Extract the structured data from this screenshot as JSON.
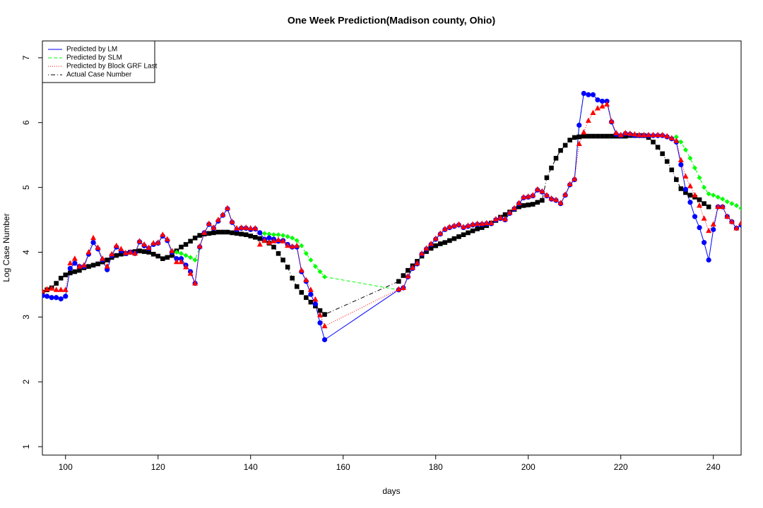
{
  "chart_data": {
    "type": "line",
    "title": "One Week Prediction(Madison county, Ohio)",
    "x_label": "days",
    "y_label": "Log Case Number",
    "xlim": [
      95,
      246
    ],
    "ylim": [
      0.87,
      7.26
    ],
    "xticks": [
      100,
      120,
      140,
      160,
      180,
      200,
      220,
      240
    ],
    "yticks": [
      1,
      2,
      3,
      4,
      5,
      6,
      7
    ],
    "grid": false,
    "legend": "top-left",
    "x": [
      95,
      96,
      97,
      98,
      99,
      100,
      101,
      102,
      103,
      104,
      105,
      106,
      107,
      108,
      109,
      110,
      111,
      112,
      113,
      114,
      115,
      116,
      117,
      118,
      119,
      120,
      121,
      122,
      123,
      124,
      125,
      126,
      127,
      128,
      129,
      130,
      131,
      132,
      133,
      134,
      135,
      136,
      137,
      138,
      139,
      140,
      141,
      142,
      143,
      144,
      145,
      146,
      147,
      148,
      149,
      150,
      151,
      152,
      153,
      154,
      155,
      156,
      172,
      173,
      174,
      175,
      176,
      177,
      178,
      179,
      180,
      181,
      182,
      183,
      184,
      185,
      186,
      187,
      188,
      189,
      190,
      191,
      192,
      193,
      194,
      195,
      196,
      197,
      198,
      199,
      200,
      201,
      202,
      203,
      204,
      205,
      206,
      207,
      208,
      209,
      210,
      211,
      212,
      213,
      214,
      215,
      216,
      217,
      218,
      219,
      220,
      221,
      222,
      223,
      224,
      225,
      226,
      227,
      228,
      229,
      230,
      231,
      232,
      233,
      234,
      235,
      236,
      237,
      238,
      239,
      240,
      241,
      242,
      243,
      244,
      245,
      246
    ],
    "series": [
      {
        "name": "Predicted by LM",
        "color": "#0000ff",
        "dash": "solid",
        "marker": "circle",
        "values": [
          3.33,
          3.32,
          3.3,
          3.3,
          3.28,
          3.32,
          3.75,
          3.83,
          3.78,
          3.78,
          3.97,
          4.15,
          4.05,
          3.88,
          3.73,
          3.95,
          4.08,
          4.02,
          3.98,
          4.0,
          3.98,
          4.16,
          4.1,
          4.06,
          4.12,
          4.14,
          4.25,
          4.18,
          4.0,
          3.9,
          3.9,
          3.8,
          3.7,
          3.52,
          4.08,
          4.3,
          4.43,
          4.37,
          4.48,
          4.57,
          4.67,
          4.46,
          4.35,
          4.37,
          4.37,
          4.35,
          4.36,
          4.3,
          4.2,
          4.22,
          4.2,
          4.17,
          4.18,
          4.12,
          4.08,
          4.08,
          3.7,
          3.55,
          3.35,
          3.2,
          2.91,
          2.65,
          3.42,
          3.45,
          3.62,
          3.75,
          3.82,
          3.97,
          4.05,
          4.12,
          4.2,
          4.28,
          4.35,
          4.38,
          4.4,
          4.42,
          4.38,
          4.4,
          4.42,
          4.43,
          4.43,
          4.44,
          4.44,
          4.5,
          4.52,
          4.5,
          4.6,
          4.67,
          4.75,
          4.84,
          4.85,
          4.87,
          4.96,
          4.93,
          4.87,
          4.82,
          4.8,
          4.75,
          4.88,
          5.04,
          5.12,
          5.96,
          6.45,
          6.43,
          6.43,
          6.35,
          6.33,
          6.33,
          6.01,
          5.82,
          5.8,
          5.83,
          5.82,
          5.8,
          5.8,
          5.8,
          5.8,
          5.8,
          5.8,
          5.8,
          5.78,
          5.75,
          5.7,
          5.35,
          4.97,
          4.77,
          4.55,
          4.38,
          4.15,
          3.88,
          4.35,
          4.7,
          4.7,
          4.55,
          4.47,
          4.37,
          4.42
        ]
      },
      {
        "name": "Predicted by SLM",
        "color": "#00ff00",
        "dash": "dashed",
        "marker": "diamond",
        "values": [
          3.33,
          3.32,
          3.3,
          3.3,
          3.28,
          3.32,
          3.75,
          3.83,
          3.78,
          3.78,
          3.97,
          4.15,
          4.05,
          3.88,
          3.73,
          3.95,
          4.08,
          4.02,
          3.98,
          4.0,
          3.98,
          4.16,
          4.1,
          4.06,
          4.12,
          4.14,
          4.25,
          4.18,
          4.02,
          4.0,
          3.98,
          3.95,
          3.92,
          3.88,
          4.08,
          4.3,
          4.43,
          4.37,
          4.48,
          4.57,
          4.67,
          4.46,
          4.35,
          4.37,
          4.37,
          4.35,
          4.36,
          4.3,
          4.29,
          4.28,
          4.27,
          4.27,
          4.26,
          4.24,
          4.22,
          4.18,
          4.1,
          3.98,
          3.88,
          3.78,
          3.7,
          3.62,
          3.42,
          3.45,
          3.62,
          3.75,
          3.82,
          3.97,
          4.05,
          4.12,
          4.2,
          4.28,
          4.35,
          4.38,
          4.4,
          4.42,
          4.38,
          4.4,
          4.42,
          4.43,
          4.43,
          4.44,
          4.44,
          4.5,
          4.52,
          4.5,
          4.6,
          4.67,
          4.75,
          4.84,
          4.85,
          4.87,
          4.96,
          4.93,
          4.87,
          4.82,
          4.8,
          4.75,
          4.88,
          5.04,
          5.12,
          5.96,
          6.45,
          6.43,
          6.43,
          6.35,
          6.33,
          6.33,
          6.01,
          5.82,
          5.8,
          5.83,
          5.82,
          5.8,
          5.8,
          5.8,
          5.8,
          5.8,
          5.8,
          5.8,
          5.78,
          5.75,
          5.78,
          5.7,
          5.58,
          5.45,
          5.3,
          5.15,
          5.0,
          4.9,
          4.88,
          4.85,
          4.82,
          4.78,
          4.75,
          4.72,
          4.68
        ]
      },
      {
        "name": "Predicted by Block GRF Last",
        "color": "#ff0000",
        "dash": "dotted",
        "marker": "triangle",
        "values": [
          3.4,
          3.43,
          3.44,
          3.42,
          3.42,
          3.42,
          3.83,
          3.9,
          3.78,
          3.8,
          4.0,
          4.22,
          4.07,
          3.9,
          3.78,
          3.97,
          4.1,
          4.05,
          3.99,
          4.0,
          3.98,
          4.17,
          4.12,
          4.07,
          4.14,
          4.15,
          4.27,
          4.2,
          4.02,
          3.85,
          3.85,
          3.77,
          3.67,
          3.52,
          4.09,
          4.3,
          4.44,
          4.38,
          4.5,
          4.58,
          4.68,
          4.47,
          4.37,
          4.38,
          4.38,
          4.37,
          4.37,
          4.12,
          4.18,
          4.15,
          4.17,
          4.19,
          4.17,
          4.1,
          4.09,
          4.1,
          3.72,
          3.57,
          3.42,
          3.27,
          3.03,
          2.86,
          3.43,
          3.45,
          3.63,
          3.76,
          3.83,
          3.98,
          4.06,
          4.13,
          4.21,
          4.29,
          4.36,
          4.39,
          4.41,
          4.43,
          4.39,
          4.41,
          4.43,
          4.44,
          4.44,
          4.45,
          4.45,
          4.51,
          4.53,
          4.51,
          4.61,
          4.68,
          4.76,
          4.85,
          4.86,
          4.88,
          4.97,
          4.94,
          4.88,
          4.83,
          4.81,
          4.76,
          4.89,
          5.05,
          5.13,
          5.67,
          5.85,
          6.03,
          6.15,
          6.22,
          6.25,
          6.28,
          6.02,
          5.84,
          5.81,
          5.84,
          5.83,
          5.82,
          5.81,
          5.81,
          5.81,
          5.81,
          5.81,
          5.81,
          5.79,
          5.76,
          5.72,
          5.42,
          5.17,
          5.02,
          4.88,
          4.72,
          4.52,
          4.33,
          4.43,
          4.7,
          4.7,
          4.55,
          4.47,
          4.37,
          4.45
        ]
      },
      {
        "name": "Actual Case Number",
        "color": "#000000",
        "dash": "dotdash",
        "marker": "square",
        "values": [
          3.38,
          3.42,
          3.45,
          3.52,
          3.6,
          3.65,
          3.68,
          3.7,
          3.72,
          3.76,
          3.78,
          3.8,
          3.82,
          3.85,
          3.88,
          3.92,
          3.95,
          3.97,
          3.98,
          4.0,
          4.01,
          4.02,
          4.01,
          4.0,
          3.97,
          3.94,
          3.9,
          3.92,
          3.95,
          4.02,
          4.08,
          4.12,
          4.17,
          4.22,
          4.26,
          4.28,
          4.29,
          4.3,
          4.31,
          4.31,
          4.31,
          4.3,
          4.29,
          4.28,
          4.27,
          4.25,
          4.23,
          4.21,
          4.18,
          4.14,
          4.08,
          3.98,
          3.88,
          3.77,
          3.6,
          3.47,
          3.38,
          3.3,
          3.23,
          3.17,
          3.1,
          3.04,
          3.55,
          3.64,
          3.72,
          3.79,
          3.86,
          3.94,
          4.01,
          4.06,
          4.1,
          4.13,
          4.15,
          4.18,
          4.21,
          4.24,
          4.27,
          4.3,
          4.33,
          4.36,
          4.38,
          4.41,
          4.45,
          4.49,
          4.54,
          4.58,
          4.62,
          4.66,
          4.7,
          4.72,
          4.73,
          4.74,
          4.77,
          4.8,
          5.15,
          5.3,
          5.45,
          5.57,
          5.65,
          5.73,
          5.77,
          5.78,
          5.79,
          5.79,
          5.79,
          5.79,
          5.79,
          5.79,
          5.79,
          5.79,
          5.79,
          5.79,
          5.8,
          5.8,
          5.8,
          5.8,
          5.77,
          5.7,
          5.62,
          5.52,
          5.4,
          5.27,
          5.12,
          4.98,
          4.92,
          4.88,
          4.85,
          4.81,
          4.75,
          4.7,
          null,
          null,
          null,
          null,
          null,
          null,
          null
        ]
      }
    ]
  }
}
